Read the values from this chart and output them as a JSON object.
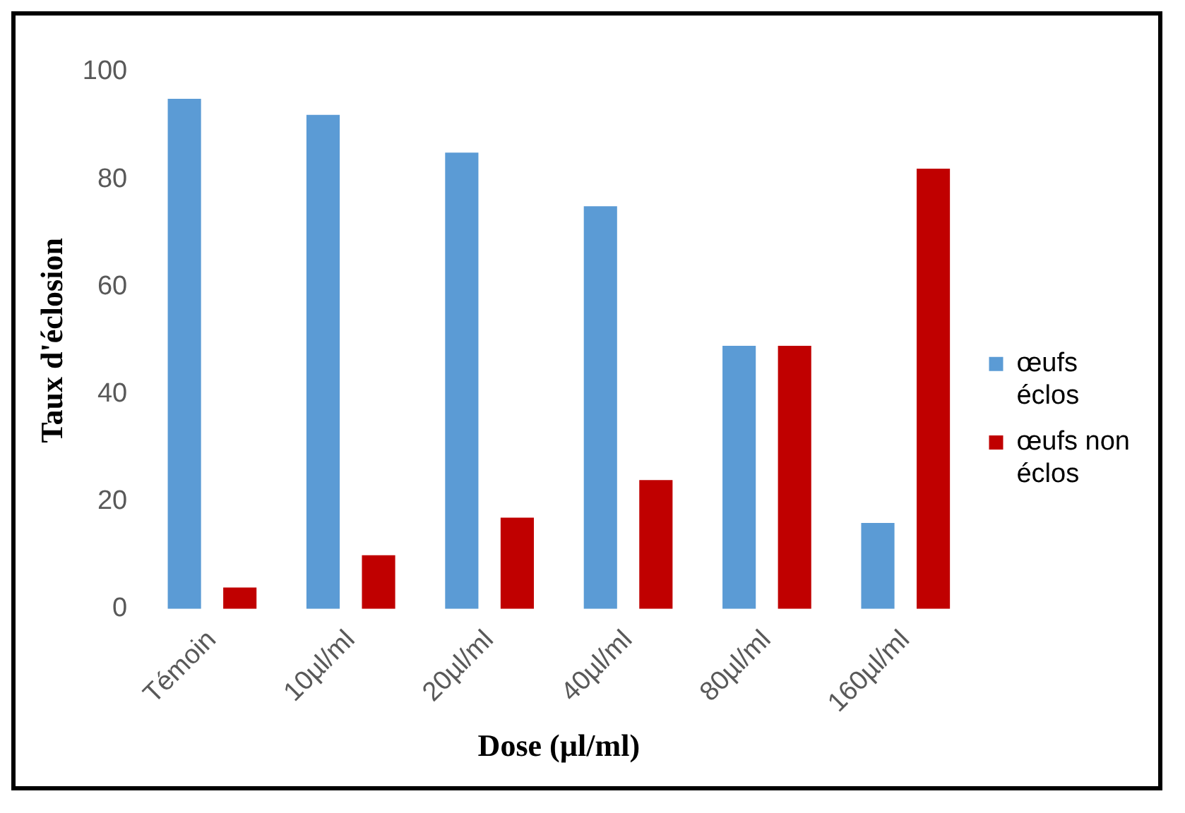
{
  "chart_data": {
    "type": "bar",
    "xlabel": "Dose (µl/ml)",
    "ylabel": "Taux d'éclosion",
    "categories": [
      "Témoin",
      "10µl/ml",
      "20µl/ml",
      "40µl/ml",
      "80µl/ml",
      "160µl/ml"
    ],
    "series": [
      {
        "name": "œufs éclos",
        "color": "#5b9bd5",
        "values": [
          95,
          92,
          85,
          75,
          49,
          16
        ]
      },
      {
        "name": "œufs non éclos",
        "color": "#c00000",
        "values": [
          4,
          10,
          17,
          24,
          49,
          82
        ]
      }
    ],
    "ylim": [
      0,
      100
    ],
    "yticks": [
      0,
      20,
      40,
      60,
      80,
      100
    ],
    "grid": false,
    "legend": "right"
  }
}
